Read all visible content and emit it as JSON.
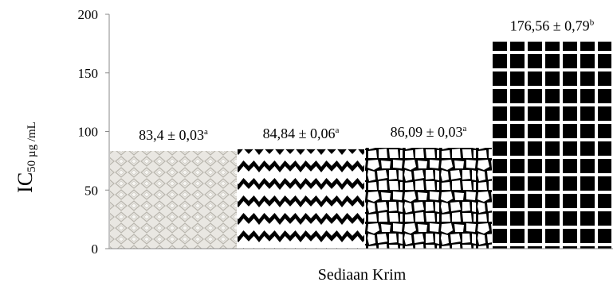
{
  "chart_data": {
    "type": "bar",
    "categories": [
      "",
      "",
      "",
      ""
    ],
    "values": [
      83.4,
      84.84,
      86.09,
      176.56
    ],
    "data_labels": [
      {
        "text": "83,4 ± 0,03",
        "sup": "a"
      },
      {
        "text": "84,84 ± 0,06",
        "sup": "a"
      },
      {
        "text": "86,09 ± 0,03",
        "sup": "a"
      },
      {
        "text": "176,56 ± 0,79",
        "sup": "b"
      }
    ],
    "patterns": [
      "diamond-lattice",
      "zigzag",
      "cells",
      "grid"
    ],
    "ylim": [
      0,
      200
    ],
    "yticks": [
      "0",
      "50",
      "100",
      "150",
      "200"
    ],
    "ytick_values": [
      0,
      50,
      100,
      150,
      200
    ],
    "title": "",
    "xlabel": "Sediaan Krim",
    "ylabel": {
      "main": "IC",
      "sub": "50 µg /mL"
    },
    "grid": false,
    "legend": "none",
    "colors": {
      "bar_dark": "#000000",
      "bar_light": "#e8e6e1",
      "axis": "#8a8a8a",
      "text": "#000000"
    }
  }
}
